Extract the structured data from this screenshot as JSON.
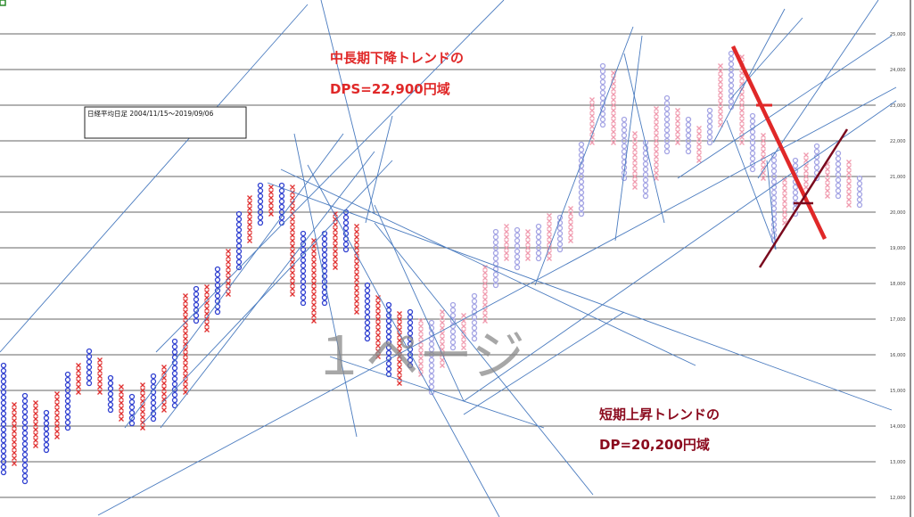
{
  "chart_data": {
    "type": "point-and-figure",
    "title": "日経平均日足 2004/11/15～2019/09/06",
    "watermark": "１ページ",
    "annotations": [
      {
        "text": "中長期下降トレンドの",
        "color": "#e02828"
      },
      {
        "text": "DPS=22,900円域",
        "color": "#e02828"
      },
      {
        "text": "短期上昇トレンドの",
        "color": "#8b0a1e"
      },
      {
        "text": "DP=20,200円域",
        "color": "#8b0a1e"
      }
    ],
    "box_size": 150,
    "ylim": [
      11450,
      25950
    ],
    "yticks": [
      {
        "value": 12000,
        "label": "12,000"
      },
      {
        "value": 13000,
        "label": "13,000"
      },
      {
        "value": 14000,
        "label": "14,000"
      },
      {
        "value": 15000,
        "label": "15,000"
      },
      {
        "value": 16000,
        "label": "16,000"
      },
      {
        "value": 17000,
        "label": "17,000"
      },
      {
        "value": 18000,
        "label": "18,000"
      },
      {
        "value": 19000,
        "label": "19,000"
      },
      {
        "value": 20000,
        "label": "20,000"
      },
      {
        "value": 21000,
        "label": "21,000"
      },
      {
        "value": 22000,
        "label": "22,000"
      },
      {
        "value": 23000,
        "label": "23,000"
      },
      {
        "value": 24000,
        "label": "24,000"
      },
      {
        "value": 25000,
        "label": "25,000"
      }
    ],
    "grid": true,
    "series": [
      {
        "x_color": "#e03030",
        "o_color": "#2f3fd0",
        "columns": [
          [
            "O",
            15700,
            12700
          ],
          [
            "X",
            14700,
            12950
          ],
          [
            "O",
            14950,
            12450
          ],
          [
            "X",
            14700,
            13450
          ],
          [
            "O",
            14450,
            13325
          ],
          [
            "X",
            14950,
            13700
          ],
          [
            "O",
            15450,
            13950
          ],
          [
            "X",
            15825,
            14950
          ],
          [
            "O",
            16200,
            15200
          ],
          [
            "X",
            15950,
            14950
          ],
          [
            "O",
            15450,
            14450
          ],
          [
            "X",
            15200,
            14200
          ],
          [
            "O",
            14950,
            14075
          ],
          [
            "X",
            15200,
            13950
          ],
          [
            "O",
            15450,
            14200
          ],
          [
            "X",
            15700,
            14450
          ],
          [
            "O",
            16450,
            14575
          ],
          [
            "X",
            17700,
            14950
          ],
          [
            "O",
            17950,
            16950
          ],
          [
            "X",
            17950,
            16700
          ],
          [
            "O",
            18450,
            17200
          ],
          [
            "X",
            18950,
            17700
          ],
          [
            "O",
            19950,
            18450
          ],
          [
            "X",
            20450,
            19200
          ],
          [
            "O",
            20825,
            19700
          ],
          [
            "X",
            20700,
            19950
          ],
          [
            "O",
            20825,
            19700
          ],
          [
            "X",
            20700,
            17700
          ],
          [
            "O",
            19450,
            17450
          ],
          [
            "X",
            19200,
            16950
          ],
          [
            "O",
            19450,
            17450
          ],
          [
            "X",
            19950,
            18450
          ],
          [
            "O",
            20075,
            18950
          ],
          [
            "X",
            19700,
            17200
          ],
          [
            "O",
            17950,
            16450
          ],
          [
            "X",
            17700,
            15950
          ],
          [
            "O",
            17450,
            15450
          ],
          [
            "X",
            17200,
            15200
          ],
          [
            "O",
            17200,
            15700
          ]
        ]
      },
      {
        "x_color": "#f09aae",
        "o_color": "#a4a4e4",
        "columns": [
          [
            "X",
            16950,
            15450
          ],
          [
            "O",
            16950,
            14950
          ],
          [
            "X",
            17200,
            15700
          ],
          [
            "O",
            17450,
            16200
          ],
          [
            "X",
            17200,
            16200
          ],
          [
            "O",
            17700,
            16450
          ],
          [
            "X",
            18450,
            16950
          ],
          [
            "O",
            19450,
            17950
          ],
          [
            "X",
            19700,
            18700
          ],
          [
            "O",
            19575,
            18450
          ],
          [
            "X",
            19450,
            18700
          ],
          [
            "O",
            19700,
            18700
          ],
          [
            "X",
            19950,
            18700
          ],
          [
            "O",
            19950,
            18950
          ],
          [
            "X",
            20200,
            19200
          ],
          [
            "O",
            21950,
            19950
          ],
          [
            "X",
            23200,
            21950
          ],
          [
            "O",
            24200,
            22450
          ],
          [
            "X",
            23950,
            21950
          ],
          [
            "O",
            22700,
            20950
          ],
          [
            "X",
            22200,
            20700
          ],
          [
            "O",
            21950,
            20450
          ],
          [
            "X",
            22950,
            20950
          ],
          [
            "O",
            23200,
            21700
          ],
          [
            "X",
            22950,
            21950
          ],
          [
            "O",
            22700,
            21700
          ],
          [
            "X",
            22450,
            21450
          ],
          [
            "O",
            22950,
            21950
          ],
          [
            "X",
            24200,
            22450
          ],
          [
            "O",
            24575,
            22950
          ],
          [
            "X",
            24450,
            21950
          ],
          [
            "O",
            22700,
            21200
          ],
          [
            "X",
            22200,
            20950
          ],
          [
            "O",
            21700,
            19200
          ],
          [
            "X",
            20950,
            19700
          ],
          [
            "O",
            21450,
            19950
          ],
          [
            "X",
            21700,
            20700
          ],
          [
            "O",
            21950,
            20950
          ],
          [
            "X",
            21450,
            20450
          ],
          [
            "O",
            21700,
            20450
          ],
          [
            "X",
            21450,
            20200
          ],
          [
            "O",
            20950,
            20200
          ]
        ]
      }
    ]
  }
}
